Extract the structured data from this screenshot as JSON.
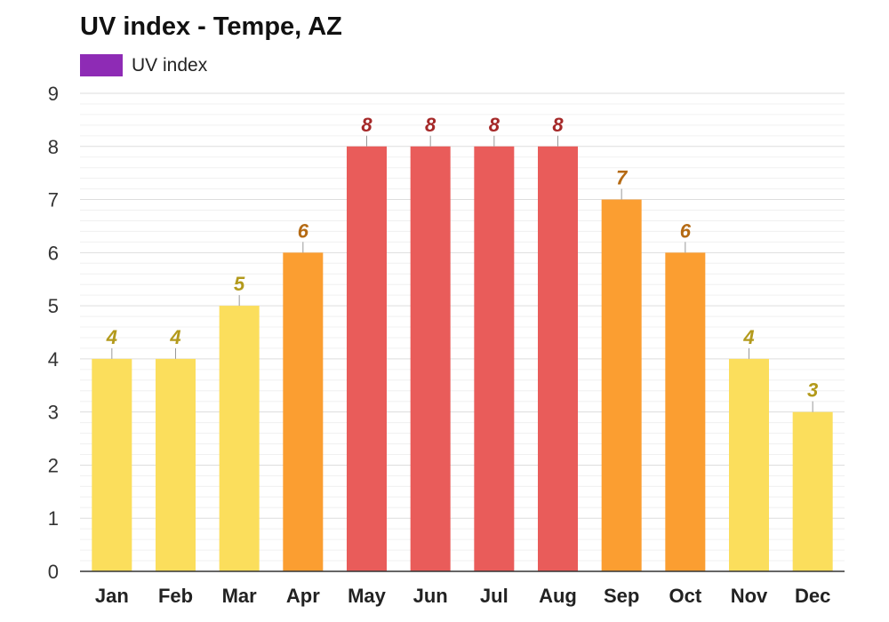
{
  "chart_data": {
    "type": "bar",
    "title": "UV index - Tempe, AZ",
    "legend": [
      {
        "label": "UV index",
        "color": "#8e2bb5"
      }
    ],
    "categories": [
      "Jan",
      "Feb",
      "Mar",
      "Apr",
      "May",
      "Jun",
      "Jul",
      "Aug",
      "Sep",
      "Oct",
      "Nov",
      "Dec"
    ],
    "values": [
      4,
      4,
      5,
      6,
      8,
      8,
      8,
      8,
      7,
      6,
      4,
      3
    ],
    "value_labels": [
      "4",
      "4",
      "5",
      "6",
      "8",
      "8",
      "8",
      "8",
      "7",
      "6",
      "4",
      "3"
    ],
    "bar_colors": [
      "#fbde5c",
      "#fbde5c",
      "#fbde5c",
      "#fb9e31",
      "#e95c5a",
      "#e95c5a",
      "#e95c5a",
      "#e95c5a",
      "#fb9e31",
      "#fb9e31",
      "#fbde5c",
      "#fbde5c"
    ],
    "label_colors": [
      "#b39a1c",
      "#b39a1c",
      "#b39a1c",
      "#b56a13",
      "#a52828",
      "#a52828",
      "#a52828",
      "#a52828",
      "#b56a13",
      "#b56a13",
      "#b39a1c",
      "#b39a1c"
    ],
    "ylim": [
      0,
      9
    ],
    "yticks": [
      "0",
      "1",
      "2",
      "3",
      "4",
      "5",
      "6",
      "7",
      "8",
      "9"
    ],
    "xlabel": "",
    "ylabel": "",
    "grid": true,
    "legend_position": "top-left"
  }
}
